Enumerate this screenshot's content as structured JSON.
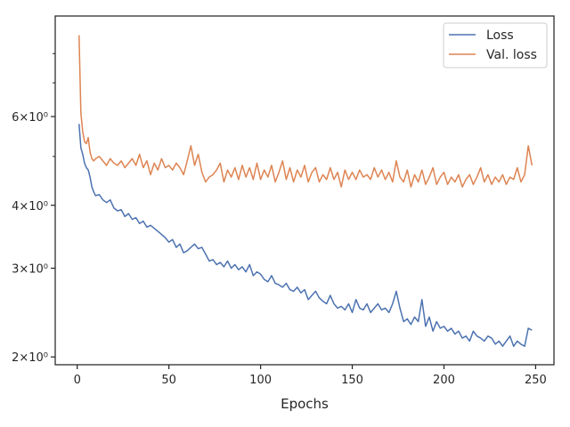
{
  "chart_data": {
    "type": "line",
    "title": "",
    "xlabel": "Epochs",
    "ylabel": "",
    "yscale": "log",
    "xlim": [
      -12,
      260
    ],
    "ylim": [
      1.93,
      9.5
    ],
    "x_ticks": [
      0,
      50,
      100,
      150,
      200,
      250
    ],
    "y_ticks": [
      {
        "value": 2,
        "label": "2×10⁰"
      },
      {
        "value": 3,
        "label": "3×10⁰"
      },
      {
        "value": 4,
        "label": "4×10⁰"
      },
      {
        "value": 6,
        "label": "6×10⁰"
      }
    ],
    "minor_y_ticks": [
      5,
      7,
      8
    ],
    "grid": false,
    "legend": {
      "placement": "top-right"
    },
    "series": [
      {
        "name": "Loss",
        "color": "#4c72b0",
        "points": [
          [
            1,
            5.8
          ],
          [
            2,
            5.2
          ],
          [
            3,
            5.05
          ],
          [
            4,
            4.85
          ],
          [
            5,
            4.75
          ],
          [
            6,
            4.7
          ],
          [
            7,
            4.55
          ],
          [
            8,
            4.35
          ],
          [
            9,
            4.25
          ],
          [
            10,
            4.18
          ],
          [
            12,
            4.2
          ],
          [
            14,
            4.1
          ],
          [
            16,
            4.05
          ],
          [
            18,
            4.1
          ],
          [
            20,
            3.95
          ],
          [
            22,
            3.9
          ],
          [
            24,
            3.92
          ],
          [
            26,
            3.8
          ],
          [
            28,
            3.85
          ],
          [
            30,
            3.75
          ],
          [
            32,
            3.78
          ],
          [
            34,
            3.68
          ],
          [
            36,
            3.72
          ],
          [
            38,
            3.62
          ],
          [
            40,
            3.65
          ],
          [
            42,
            3.6
          ],
          [
            44,
            3.55
          ],
          [
            46,
            3.5
          ],
          [
            48,
            3.45
          ],
          [
            50,
            3.38
          ],
          [
            52,
            3.42
          ],
          [
            54,
            3.3
          ],
          [
            56,
            3.35
          ],
          [
            58,
            3.22
          ],
          [
            60,
            3.25
          ],
          [
            62,
            3.3
          ],
          [
            64,
            3.35
          ],
          [
            66,
            3.28
          ],
          [
            68,
            3.3
          ],
          [
            70,
            3.2
          ],
          [
            72,
            3.1
          ],
          [
            74,
            3.12
          ],
          [
            76,
            3.05
          ],
          [
            78,
            3.08
          ],
          [
            80,
            3.02
          ],
          [
            82,
            3.1
          ],
          [
            84,
            3.0
          ],
          [
            86,
            3.05
          ],
          [
            88,
            2.98
          ],
          [
            90,
            3.02
          ],
          [
            92,
            2.95
          ],
          [
            94,
            3.05
          ],
          [
            96,
            2.9
          ],
          [
            98,
            2.95
          ],
          [
            100,
            2.92
          ],
          [
            102,
            2.85
          ],
          [
            104,
            2.82
          ],
          [
            106,
            2.9
          ],
          [
            108,
            2.8
          ],
          [
            110,
            2.78
          ],
          [
            112,
            2.75
          ],
          [
            114,
            2.8
          ],
          [
            116,
            2.72
          ],
          [
            118,
            2.7
          ],
          [
            120,
            2.75
          ],
          [
            122,
            2.68
          ],
          [
            124,
            2.72
          ],
          [
            126,
            2.6
          ],
          [
            128,
            2.65
          ],
          [
            130,
            2.7
          ],
          [
            132,
            2.62
          ],
          [
            134,
            2.58
          ],
          [
            136,
            2.55
          ],
          [
            138,
            2.65
          ],
          [
            140,
            2.55
          ],
          [
            142,
            2.5
          ],
          [
            144,
            2.52
          ],
          [
            146,
            2.48
          ],
          [
            148,
            2.55
          ],
          [
            150,
            2.45
          ],
          [
            152,
            2.6
          ],
          [
            154,
            2.5
          ],
          [
            156,
            2.48
          ],
          [
            158,
            2.55
          ],
          [
            160,
            2.45
          ],
          [
            162,
            2.5
          ],
          [
            164,
            2.55
          ],
          [
            166,
            2.48
          ],
          [
            168,
            2.5
          ],
          [
            170,
            2.45
          ],
          [
            172,
            2.55
          ],
          [
            174,
            2.7
          ],
          [
            176,
            2.5
          ],
          [
            178,
            2.35
          ],
          [
            180,
            2.38
          ],
          [
            182,
            2.32
          ],
          [
            184,
            2.4
          ],
          [
            186,
            2.35
          ],
          [
            188,
            2.6
          ],
          [
            190,
            2.3
          ],
          [
            192,
            2.4
          ],
          [
            194,
            2.25
          ],
          [
            196,
            2.35
          ],
          [
            198,
            2.28
          ],
          [
            200,
            2.3
          ],
          [
            202,
            2.25
          ],
          [
            204,
            2.28
          ],
          [
            206,
            2.22
          ],
          [
            208,
            2.25
          ],
          [
            210,
            2.18
          ],
          [
            212,
            2.2
          ],
          [
            214,
            2.15
          ],
          [
            216,
            2.25
          ],
          [
            218,
            2.2
          ],
          [
            220,
            2.18
          ],
          [
            222,
            2.15
          ],
          [
            224,
            2.2
          ],
          [
            226,
            2.18
          ],
          [
            228,
            2.12
          ],
          [
            230,
            2.15
          ],
          [
            232,
            2.1
          ],
          [
            234,
            2.15
          ],
          [
            236,
            2.2
          ],
          [
            238,
            2.1
          ],
          [
            240,
            2.15
          ],
          [
            242,
            2.12
          ],
          [
            244,
            2.1
          ],
          [
            246,
            2.28
          ],
          [
            248,
            2.26
          ]
        ]
      },
      {
        "name": "Val. loss",
        "color": "#dd8452",
        "points": [
          [
            1,
            8.7
          ],
          [
            2,
            6.1
          ],
          [
            3,
            5.6
          ],
          [
            4,
            5.35
          ],
          [
            5,
            5.3
          ],
          [
            6,
            5.45
          ],
          [
            7,
            5.1
          ],
          [
            8,
            4.95
          ],
          [
            9,
            4.9
          ],
          [
            10,
            4.95
          ],
          [
            12,
            5.0
          ],
          [
            14,
            4.9
          ],
          [
            16,
            4.8
          ],
          [
            18,
            4.95
          ],
          [
            20,
            4.85
          ],
          [
            22,
            4.8
          ],
          [
            24,
            4.9
          ],
          [
            26,
            4.75
          ],
          [
            28,
            4.85
          ],
          [
            30,
            4.95
          ],
          [
            32,
            4.8
          ],
          [
            34,
            5.05
          ],
          [
            36,
            4.75
          ],
          [
            38,
            4.9
          ],
          [
            40,
            4.6
          ],
          [
            42,
            4.85
          ],
          [
            44,
            4.7
          ],
          [
            46,
            4.95
          ],
          [
            48,
            4.75
          ],
          [
            50,
            4.8
          ],
          [
            52,
            4.7
          ],
          [
            54,
            4.85
          ],
          [
            56,
            4.75
          ],
          [
            58,
            4.6
          ],
          [
            60,
            4.9
          ],
          [
            62,
            5.25
          ],
          [
            64,
            4.8
          ],
          [
            66,
            5.05
          ],
          [
            68,
            4.65
          ],
          [
            70,
            4.45
          ],
          [
            72,
            4.55
          ],
          [
            74,
            4.6
          ],
          [
            76,
            4.7
          ],
          [
            78,
            4.85
          ],
          [
            80,
            4.45
          ],
          [
            82,
            4.7
          ],
          [
            84,
            4.55
          ],
          [
            86,
            4.75
          ],
          [
            88,
            4.5
          ],
          [
            90,
            4.8
          ],
          [
            92,
            4.55
          ],
          [
            94,
            4.75
          ],
          [
            96,
            4.5
          ],
          [
            98,
            4.85
          ],
          [
            100,
            4.5
          ],
          [
            102,
            4.7
          ],
          [
            104,
            4.55
          ],
          [
            106,
            4.8
          ],
          [
            108,
            4.45
          ],
          [
            110,
            4.65
          ],
          [
            112,
            4.9
          ],
          [
            114,
            4.5
          ],
          [
            116,
            4.75
          ],
          [
            118,
            4.45
          ],
          [
            120,
            4.7
          ],
          [
            122,
            4.55
          ],
          [
            124,
            4.8
          ],
          [
            126,
            4.45
          ],
          [
            128,
            4.65
          ],
          [
            130,
            4.75
          ],
          [
            132,
            4.45
          ],
          [
            134,
            4.6
          ],
          [
            136,
            4.5
          ],
          [
            138,
            4.75
          ],
          [
            140,
            4.5
          ],
          [
            142,
            4.65
          ],
          [
            144,
            4.35
          ],
          [
            146,
            4.7
          ],
          [
            148,
            4.5
          ],
          [
            150,
            4.65
          ],
          [
            152,
            4.5
          ],
          [
            154,
            4.7
          ],
          [
            156,
            4.55
          ],
          [
            158,
            4.6
          ],
          [
            160,
            4.5
          ],
          [
            162,
            4.75
          ],
          [
            164,
            4.55
          ],
          [
            166,
            4.7
          ],
          [
            168,
            4.5
          ],
          [
            170,
            4.65
          ],
          [
            172,
            4.45
          ],
          [
            174,
            4.9
          ],
          [
            176,
            4.55
          ],
          [
            178,
            4.45
          ],
          [
            180,
            4.7
          ],
          [
            182,
            4.35
          ],
          [
            184,
            4.6
          ],
          [
            186,
            4.45
          ],
          [
            188,
            4.7
          ],
          [
            190,
            4.4
          ],
          [
            192,
            4.55
          ],
          [
            194,
            4.75
          ],
          [
            196,
            4.4
          ],
          [
            198,
            4.55
          ],
          [
            200,
            4.65
          ],
          [
            202,
            4.4
          ],
          [
            204,
            4.55
          ],
          [
            206,
            4.45
          ],
          [
            208,
            4.6
          ],
          [
            210,
            4.35
          ],
          [
            212,
            4.5
          ],
          [
            214,
            4.6
          ],
          [
            216,
            4.4
          ],
          [
            218,
            4.55
          ],
          [
            220,
            4.75
          ],
          [
            222,
            4.45
          ],
          [
            224,
            4.6
          ],
          [
            226,
            4.4
          ],
          [
            228,
            4.55
          ],
          [
            230,
            4.45
          ],
          [
            232,
            4.6
          ],
          [
            234,
            4.4
          ],
          [
            236,
            4.55
          ],
          [
            238,
            4.5
          ],
          [
            240,
            4.75
          ],
          [
            242,
            4.45
          ],
          [
            244,
            4.6
          ],
          [
            246,
            5.25
          ],
          [
            248,
            4.8
          ]
        ]
      }
    ]
  }
}
